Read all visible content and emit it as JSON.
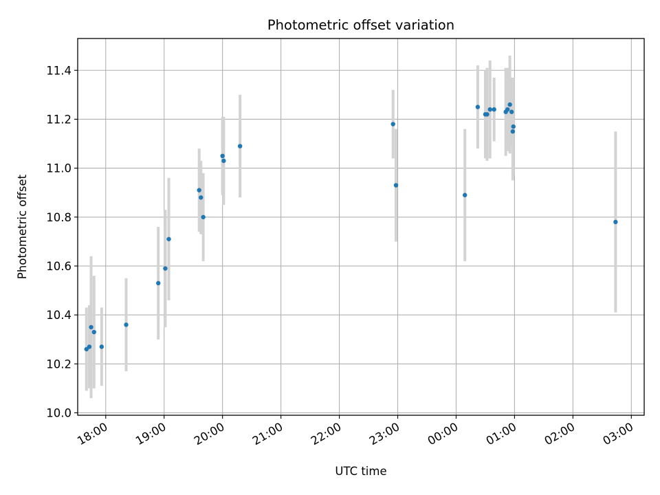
{
  "chart_data": {
    "type": "scatter",
    "title": "Photometric offset variation",
    "xlabel": "UTC time",
    "ylabel": "Photometric offset",
    "x_unit": "hours since 00:00 of first day",
    "xlim": [
      17.52,
      27.22
    ],
    "ylim": [
      9.99,
      11.53
    ],
    "grid": true,
    "x_ticks": [
      {
        "value": 18,
        "label": "18:00"
      },
      {
        "value": 19,
        "label": "19:00"
      },
      {
        "value": 20,
        "label": "20:00"
      },
      {
        "value": 21,
        "label": "21:00"
      },
      {
        "value": 22,
        "label": "22:00"
      },
      {
        "value": 23,
        "label": "23:00"
      },
      {
        "value": 24,
        "label": "00:00"
      },
      {
        "value": 25,
        "label": "01:00"
      },
      {
        "value": 26,
        "label": "02:00"
      },
      {
        "value": 27,
        "label": "03:00"
      }
    ],
    "y_ticks": [
      {
        "value": 10.0,
        "label": "10.0"
      },
      {
        "value": 10.2,
        "label": "10.2"
      },
      {
        "value": 10.4,
        "label": "10.4"
      },
      {
        "value": 10.6,
        "label": "10.6"
      },
      {
        "value": 10.8,
        "label": "10.8"
      },
      {
        "value": 11.0,
        "label": "11.0"
      },
      {
        "value": 11.2,
        "label": "11.2"
      },
      {
        "value": 11.4,
        "label": "11.4"
      }
    ],
    "colors": {
      "point": "#1f77b4",
      "errorbar": "#d3d3d3",
      "grid": "#b0b0b0"
    },
    "series": [
      {
        "name": "offset",
        "points": [
          {
            "x": 17.67,
            "y": 10.26,
            "err": 0.17
          },
          {
            "x": 17.72,
            "y": 10.27,
            "err": 0.17
          },
          {
            "x": 17.75,
            "y": 10.35,
            "err": 0.29
          },
          {
            "x": 17.8,
            "y": 10.33,
            "err": 0.23
          },
          {
            "x": 17.93,
            "y": 10.27,
            "err": 0.16
          },
          {
            "x": 18.35,
            "y": 10.36,
            "err": 0.19
          },
          {
            "x": 18.9,
            "y": 10.53,
            "err": 0.23
          },
          {
            "x": 19.02,
            "y": 10.59,
            "err": 0.24
          },
          {
            "x": 19.08,
            "y": 10.71,
            "err": 0.25
          },
          {
            "x": 19.6,
            "y": 10.91,
            "err": 0.17
          },
          {
            "x": 19.63,
            "y": 10.88,
            "err": 0.15
          },
          {
            "x": 19.67,
            "y": 10.8,
            "err": 0.18
          },
          {
            "x": 20.0,
            "y": 11.05,
            "err": 0.16
          },
          {
            "x": 20.02,
            "y": 11.03,
            "err": 0.18
          },
          {
            "x": 20.3,
            "y": 11.09,
            "err": 0.21
          },
          {
            "x": 22.92,
            "y": 11.18,
            "err": 0.14
          },
          {
            "x": 22.97,
            "y": 10.93,
            "err": 0.23
          },
          {
            "x": 24.15,
            "y": 10.89,
            "err": 0.27
          },
          {
            "x": 24.37,
            "y": 11.25,
            "err": 0.17
          },
          {
            "x": 24.5,
            "y": 11.22,
            "err": 0.18
          },
          {
            "x": 24.53,
            "y": 11.22,
            "err": 0.19
          },
          {
            "x": 24.58,
            "y": 11.24,
            "err": 0.2
          },
          {
            "x": 24.65,
            "y": 11.24,
            "err": 0.13
          },
          {
            "x": 24.85,
            "y": 11.23,
            "err": 0.18
          },
          {
            "x": 24.88,
            "y": 11.24,
            "err": 0.17
          },
          {
            "x": 24.92,
            "y": 11.26,
            "err": 0.2
          },
          {
            "x": 24.95,
            "y": 11.23,
            "err": 0.14
          },
          {
            "x": 24.97,
            "y": 11.15,
            "err": 0.2
          },
          {
            "x": 24.98,
            "y": 11.17,
            "err": 0.2
          },
          {
            "x": 26.73,
            "y": 10.78,
            "err": 0.37
          }
        ]
      }
    ]
  }
}
